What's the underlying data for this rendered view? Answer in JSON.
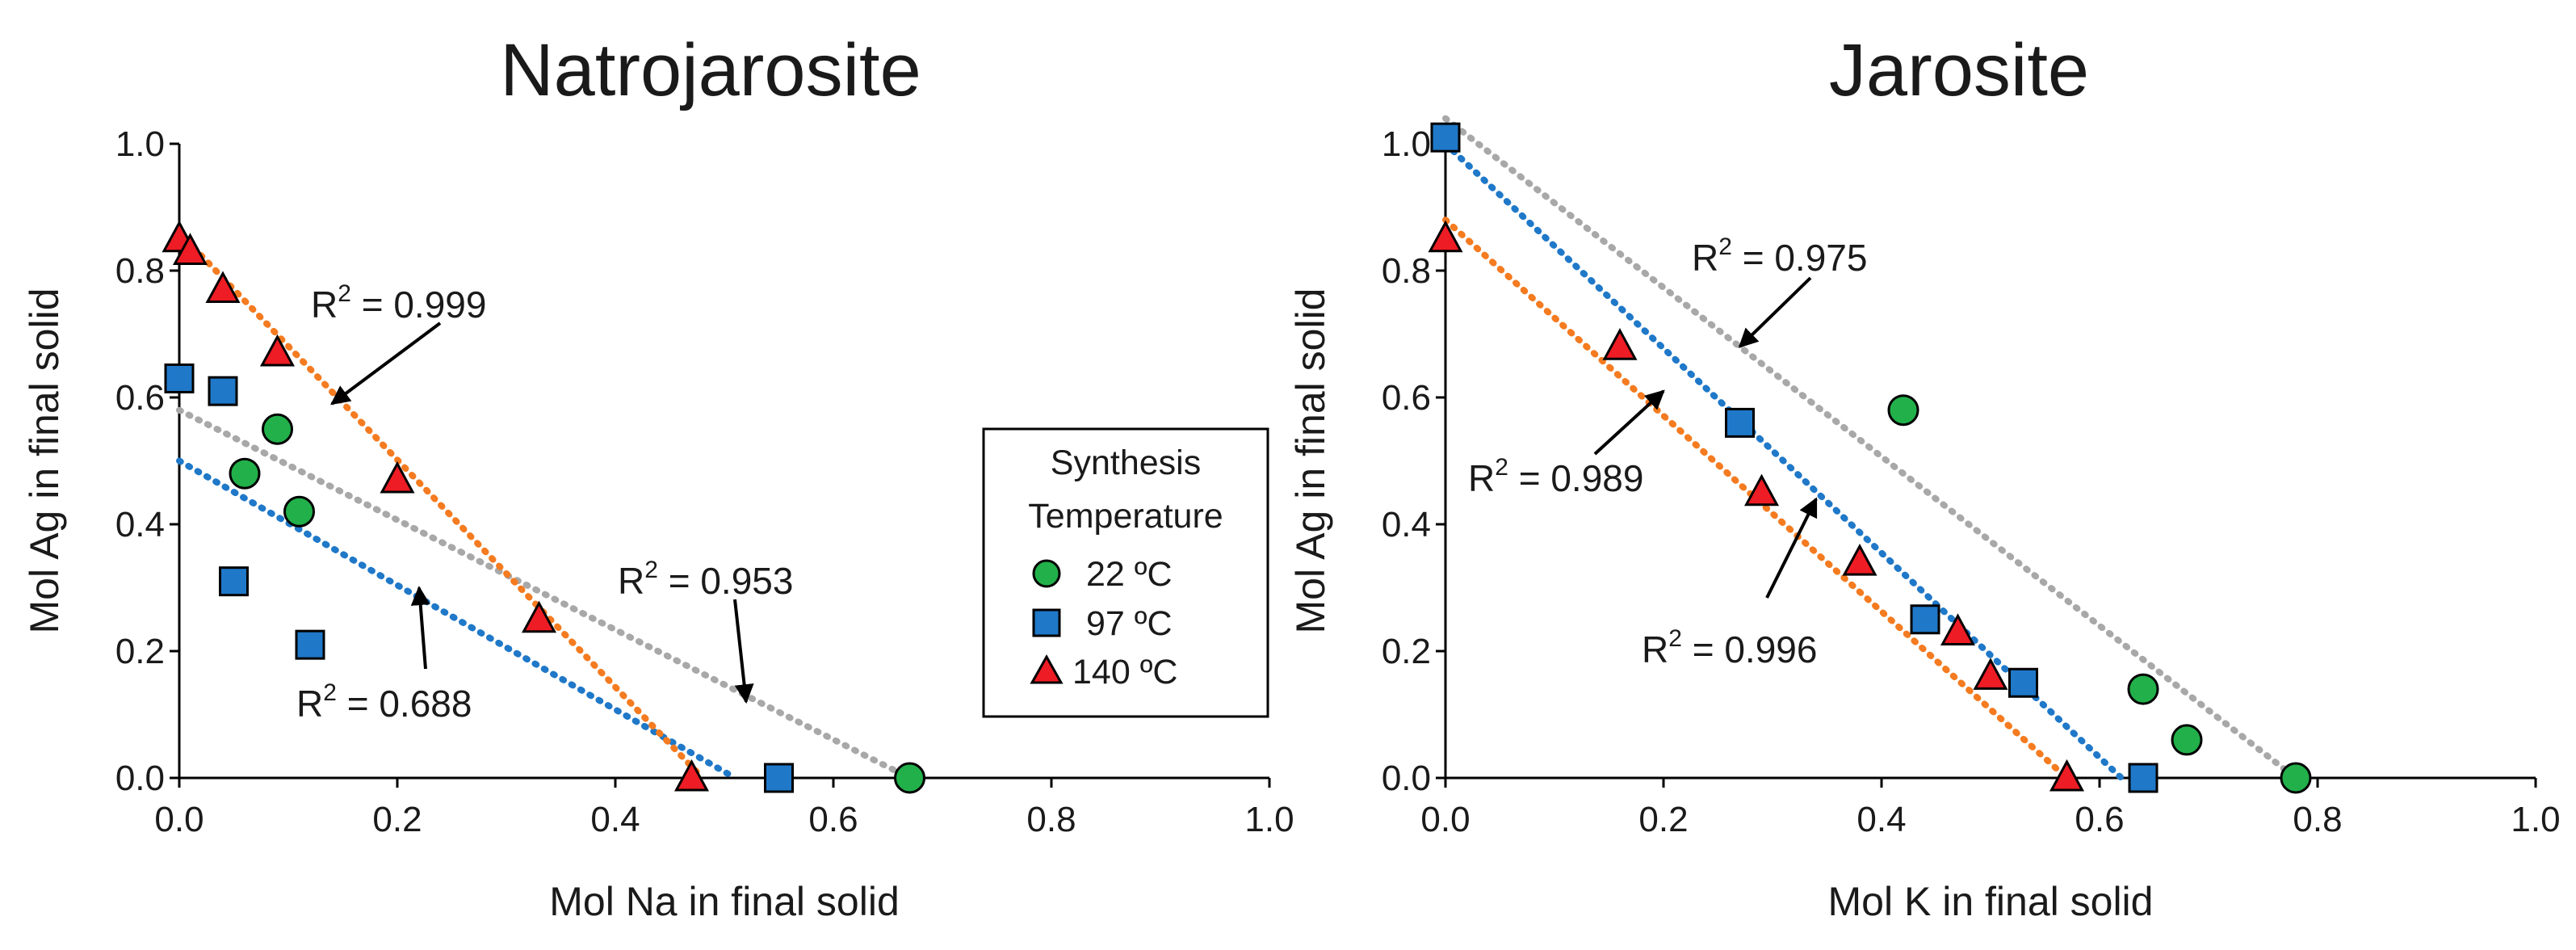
{
  "chart_data": [
    {
      "type": "scatter",
      "title": "Natrojarosite",
      "xlabel": "Mol Na in final solid",
      "ylabel": "Mol Ag in final solid",
      "xlim": [
        0,
        1
      ],
      "ylim": [
        0,
        1
      ],
      "xticks": [
        "0.0",
        "0.2",
        "0.4",
        "0.6",
        "0.8",
        "1.0"
      ],
      "yticks": [
        "0.0",
        "0.2",
        "0.4",
        "0.6",
        "0.8",
        "1.0"
      ],
      "grid": false,
      "series": [
        {
          "name": "22 ºC",
          "marker": "circle",
          "color": "#22b04a",
          "x": [
            0.06,
            0.09,
            0.11,
            0.67
          ],
          "y": [
            0.48,
            0.55,
            0.42,
            0.0
          ]
        },
        {
          "name": "97 ºC",
          "marker": "square",
          "color": "#1f78c8",
          "x": [
            0.0,
            0.04,
            0.05,
            0.12,
            0.55
          ],
          "y": [
            0.63,
            0.61,
            0.31,
            0.21,
            0.0
          ]
        },
        {
          "name": "140 ºC",
          "marker": "triangle",
          "color": "#ee1c24",
          "x": [
            0.0,
            0.01,
            0.04,
            0.09,
            0.2,
            0.33,
            0.47
          ],
          "y": [
            0.85,
            0.83,
            0.77,
            0.67,
            0.47,
            0.25,
            0.0
          ]
        }
      ],
      "trendlines": [
        {
          "series": "22 ºC",
          "color": "#a8a8a8",
          "x1": 0.0,
          "y1": 0.58,
          "x2": 0.67,
          "y2": 0.0
        },
        {
          "series": "97 ºC",
          "color": "#1f78c8",
          "x1": 0.0,
          "y1": 0.5,
          "x2": 0.51,
          "y2": 0.0
        },
        {
          "series": "140 ºC",
          "color": "#f47b20",
          "x1": 0.0,
          "y1": 0.86,
          "x2": 0.48,
          "y2": 0.0
        }
      ],
      "annotations": [
        {
          "label": "R",
          "value": " = 0.999",
          "tip": [
            0.14,
            0.59
          ]
        },
        {
          "label": "R",
          "value": " = 0.953",
          "tip": [
            0.52,
            0.12
          ]
        },
        {
          "label": "R",
          "value": " = 0.688",
          "tip": [
            0.22,
            0.3
          ]
        }
      ]
    },
    {
      "type": "scatter",
      "title": "Jarosite",
      "xlabel": "Mol K in final solid",
      "ylabel": "Mol Ag in final solid",
      "xlim": [
        0,
        1
      ],
      "ylim": [
        0,
        1
      ],
      "xticks": [
        "0.0",
        "0.2",
        "0.4",
        "0.6",
        "0.8",
        "1.0"
      ],
      "yticks": [
        "0.0",
        "0.2",
        "0.4",
        "0.6",
        "0.8",
        "1.0"
      ],
      "grid": false,
      "series": [
        {
          "name": "22 ºC",
          "marker": "circle",
          "color": "#22b04a",
          "x": [
            0.42,
            0.64,
            0.68,
            0.78
          ],
          "y": [
            0.58,
            0.14,
            0.06,
            0.0
          ]
        },
        {
          "name": "97 ºC",
          "marker": "square",
          "color": "#1f78c8",
          "x": [
            0.0,
            0.27,
            0.44,
            0.53,
            0.64
          ],
          "y": [
            1.01,
            0.56,
            0.25,
            0.15,
            0.0
          ]
        },
        {
          "name": "140 ºC",
          "marker": "triangle",
          "color": "#ee1c24",
          "x": [
            0.0,
            0.16,
            0.29,
            0.38,
            0.47,
            0.5,
            0.57
          ],
          "y": [
            0.85,
            0.68,
            0.45,
            0.34,
            0.23,
            0.16,
            0.0
          ]
        }
      ],
      "trendlines": [
        {
          "series": "22 ºC",
          "color": "#a8a8a8",
          "x1": 0.0,
          "y1": 1.04,
          "x2": 0.78,
          "y2": 0.0
        },
        {
          "series": "97 ºC",
          "color": "#1f78c8",
          "x1": 0.0,
          "y1": 1.0,
          "x2": 0.62,
          "y2": 0.0
        },
        {
          "series": "140 ºC",
          "color": "#f47b20",
          "x1": 0.0,
          "y1": 0.88,
          "x2": 0.57,
          "y2": 0.0
        }
      ],
      "annotations": [
        {
          "label": "R",
          "value": " = 0.975",
          "tip": [
            0.27,
            0.68
          ]
        },
        {
          "label": "R",
          "value": " = 0.989",
          "tip": [
            0.2,
            0.61
          ]
        },
        {
          "label": "R",
          "value": " = 0.996",
          "tip": [
            0.34,
            0.44
          ]
        }
      ]
    }
  ],
  "legend": {
    "title_line1": "Synthesis",
    "title_line2": "Temperature",
    "items": [
      {
        "label": "22 ºC",
        "marker": "circle",
        "color": "#22b04a"
      },
      {
        "label": "97 ºC",
        "marker": "square",
        "color": "#1f78c8"
      },
      {
        "label": "140 ºC",
        "marker": "triangle",
        "color": "#ee1c24"
      }
    ]
  },
  "superscript": "2"
}
